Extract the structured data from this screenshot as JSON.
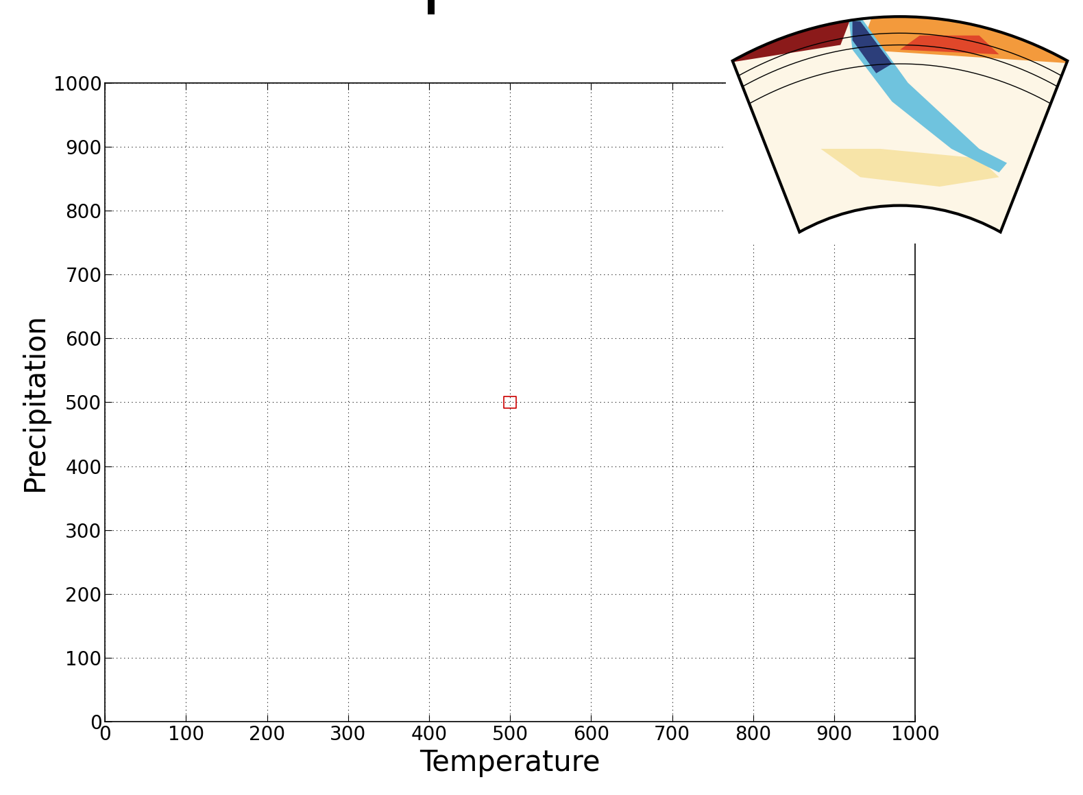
{
  "chart_data": {
    "type": "scatter",
    "x": [
      500
    ],
    "y": [
      500
    ],
    "color": "#cc0000",
    "marker": "square",
    "x_label": "Temperature",
    "y_label": "Precipitation",
    "xlim": [
      0,
      1000
    ],
    "ylim": [
      0,
      1000
    ],
    "xticks": [
      0,
      100,
      200,
      300,
      400,
      500,
      600,
      700,
      800,
      900,
      1000
    ],
    "yticks": [
      0,
      100,
      200,
      300,
      400,
      500,
      600,
      700,
      800,
      900,
      1000
    ],
    "grid": true
  }
}
